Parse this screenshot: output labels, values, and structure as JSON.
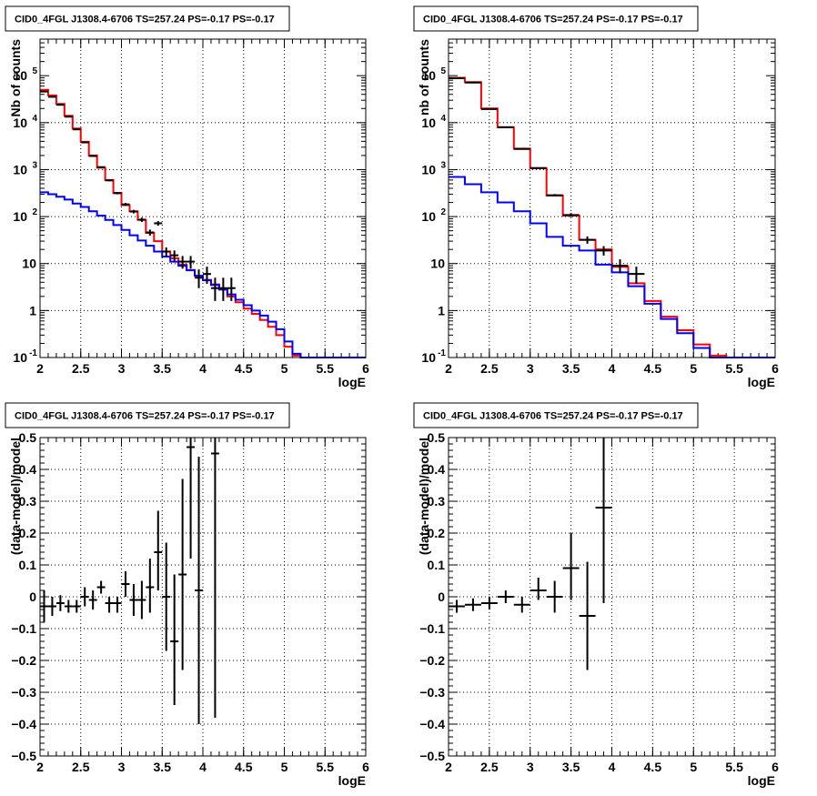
{
  "panel_title": "CID0_4FGL J1308.4-6706 TS=257.24 PS=-0.17 PS=-0.17",
  "colors": {
    "total_model": "#ff0000",
    "component": "#0000ff",
    "data": "#000000",
    "grid": "#000000"
  },
  "chart_data": [
    {
      "type": "line",
      "title": "CID0_4FGL J1308.4-6706 TS=257.24 PS=-0.17 PS=-0.17",
      "xlabel": "logE",
      "ylabel": "Nb of counts",
      "xlim": [
        2,
        6
      ],
      "ylim": [
        0.1,
        600000
      ],
      "log_y": true,
      "grid": true,
      "x_ticks": [
        "2",
        "2.5",
        "3",
        "3.5",
        "4",
        "4.5",
        "5",
        "5.5",
        "6"
      ],
      "y_ticks": [
        {
          "value": 0.1,
          "label": "10",
          "sup": "-1"
        },
        {
          "value": 1,
          "label": "1",
          "sup": ""
        },
        {
          "value": 10,
          "label": "10",
          "sup": ""
        },
        {
          "value": 100,
          "label": "10",
          "sup": "2"
        },
        {
          "value": 1000,
          "label": "10",
          "sup": "3"
        },
        {
          "value": 10000,
          "label": "10",
          "sup": "4"
        },
        {
          "value": 100000,
          "label": "10",
          "sup": "5"
        }
      ],
      "bin_edges": [
        2,
        2.1,
        2.2,
        2.3,
        2.4,
        2.5,
        2.6,
        2.7,
        2.8,
        2.9,
        3,
        3.1,
        3.2,
        3.3,
        3.4,
        3.5,
        3.6,
        3.7,
        3.8,
        3.9,
        4,
        4.1,
        4.2,
        4.3,
        4.4,
        4.5,
        4.6,
        4.7,
        4.8,
        4.9,
        5,
        5.1,
        5.2,
        5.3,
        5.4,
        5.5,
        5.6,
        5.7,
        5.8,
        5.9,
        6
      ],
      "series": [
        {
          "kind": "histogram",
          "color": "#ff0000",
          "values": [
            50000,
            38000,
            25000,
            14000,
            7500,
            3900,
            2000,
            1100,
            600,
            320,
            175,
            130,
            85,
            45,
            30,
            18,
            13,
            9.5,
            7.3,
            5.5,
            4.5,
            3.6,
            2.8,
            2.0,
            1.5,
            1.1,
            0.85,
            0.63,
            0.45,
            0.3,
            0.17,
            0.11,
            0.1,
            0.1,
            0.1,
            0.1,
            0.1,
            0.1,
            0.1,
            0.1
          ]
        },
        {
          "kind": "histogram",
          "color": "#0000ff",
          "values": [
            330,
            300,
            265,
            230,
            190,
            160,
            130,
            105,
            85,
            66,
            52,
            40,
            31,
            24,
            18,
            14,
            11,
            9,
            7.2,
            5.5,
            4.4,
            3.5,
            2.8,
            2.2,
            1.7,
            1.3,
            1.0,
            0.78,
            0.58,
            0.4,
            0.22,
            0.12,
            0.1,
            0.1,
            0.1,
            0.1,
            0.1,
            0.1,
            0.1,
            0.1
          ]
        },
        {
          "kind": "errorbar",
          "color": "#000000",
          "points": [
            {
              "x": 2.05,
              "y": 46000,
              "ylo": 45600,
              "yhi": 46400
            },
            {
              "x": 2.15,
              "y": 35500,
              "ylo": 35200,
              "yhi": 35800
            },
            {
              "x": 2.25,
              "y": 24000,
              "ylo": 23700,
              "yhi": 24300
            },
            {
              "x": 2.35,
              "y": 13400,
              "ylo": 13200,
              "yhi": 13600
            },
            {
              "x": 2.45,
              "y": 7200,
              "ylo": 7050,
              "yhi": 7350
            },
            {
              "x": 2.55,
              "y": 3800,
              "ylo": 3700,
              "yhi": 3900
            },
            {
              "x": 2.65,
              "y": 1950,
              "ylo": 1900,
              "yhi": 2000
            },
            {
              "x": 2.75,
              "y": 1130,
              "ylo": 1100,
              "yhi": 1165
            },
            {
              "x": 2.85,
              "y": 590,
              "ylo": 566,
              "yhi": 614
            },
            {
              "x": 2.95,
              "y": 315,
              "ylo": 298,
              "yhi": 333
            },
            {
              "x": 3.05,
              "y": 182,
              "ylo": 169,
              "yhi": 196
            },
            {
              "x": 3.15,
              "y": 128,
              "ylo": 117,
              "yhi": 139
            },
            {
              "x": 3.25,
              "y": 86,
              "ylo": 77,
              "yhi": 95
            },
            {
              "x": 3.35,
              "y": 46,
              "ylo": 39.5,
              "yhi": 53
            },
            {
              "x": 3.45,
              "y": 72,
              "ylo": 64,
              "yhi": 80
            },
            {
              "x": 3.55,
              "y": 18,
              "ylo": 14,
              "yhi": 22
            },
            {
              "x": 3.65,
              "y": 15,
              "ylo": 11.4,
              "yhi": 19
            },
            {
              "x": 3.75,
              "y": 11,
              "ylo": 7.8,
              "yhi": 14.5
            },
            {
              "x": 3.85,
              "y": 11,
              "ylo": 7.8,
              "yhi": 14.5
            },
            {
              "x": 3.95,
              "y": 5,
              "ylo": 3,
              "yhi": 7.5
            },
            {
              "x": 4.05,
              "y": 6,
              "ylo": 3.7,
              "yhi": 8.6
            },
            {
              "x": 4.15,
              "y": 3,
              "ylo": 1.6,
              "yhi": 5.0
            },
            {
              "x": 4.25,
              "y": 3,
              "ylo": 1.6,
              "yhi": 5.0
            },
            {
              "x": 4.35,
              "y": 3,
              "ylo": 1.6,
              "yhi": 5.0
            }
          ]
        }
      ]
    },
    {
      "type": "line",
      "title": "CID0_4FGL J1308.4-6706 TS=257.24 PS=-0.17 PS=-0.17",
      "xlabel": "logE",
      "ylabel": "nb of counts",
      "xlim": [
        2,
        6
      ],
      "ylim": [
        0.1,
        600000
      ],
      "log_y": true,
      "grid": true,
      "x_ticks": [
        "2",
        "2.5",
        "3",
        "3.5",
        "4",
        "4.5",
        "5",
        "5.5",
        "6"
      ],
      "y_ticks": [
        {
          "value": 0.1,
          "label": "10",
          "sup": "-1"
        },
        {
          "value": 1,
          "label": "1",
          "sup": ""
        },
        {
          "value": 10,
          "label": "10",
          "sup": ""
        },
        {
          "value": 100,
          "label": "10",
          "sup": "2"
        },
        {
          "value": 1000,
          "label": "10",
          "sup": "3"
        },
        {
          "value": 10000,
          "label": "10",
          "sup": "4"
        },
        {
          "value": 100000,
          "label": "10",
          "sup": "5"
        }
      ],
      "bin_edges": [
        2,
        2.2,
        2.4,
        2.6,
        2.8,
        3.0,
        3.2,
        3.4,
        3.6,
        3.8,
        4.0,
        4.2,
        4.4,
        4.6,
        4.8,
        5.0,
        5.2,
        5.4,
        5.6,
        5.8,
        6.0
      ],
      "series": [
        {
          "kind": "histogram",
          "color": "#ff0000",
          "values": [
            90000,
            73000,
            20000,
            8000,
            2800,
            1070,
            280,
            105,
            32,
            20,
            8.5,
            3.8,
            1.6,
            0.74,
            0.38,
            0.19,
            0.11,
            0.1,
            0.1,
            0.1
          ]
        },
        {
          "kind": "histogram",
          "color": "#0000ff",
          "values": [
            700,
            490,
            330,
            200,
            130,
            72,
            37,
            24,
            19,
            9.5,
            6.5,
            3.3,
            1.4,
            0.66,
            0.33,
            0.16,
            0.1,
            0.1,
            0.1,
            0.1
          ]
        },
        {
          "kind": "errorbar",
          "color": "#000000",
          "points": [
            {
              "x": 2.1,
              "y": 88000,
              "ylo": 87700,
              "yhi": 88300
            },
            {
              "x": 2.3,
              "y": 71500,
              "ylo": 71200,
              "yhi": 71800
            },
            {
              "x": 2.5,
              "y": 19500,
              "ylo": 19350,
              "yhi": 19650
            },
            {
              "x": 2.7,
              "y": 8000,
              "ylo": 7900,
              "yhi": 8100
            },
            {
              "x": 2.9,
              "y": 2750,
              "ylo": 2700,
              "yhi": 2800
            },
            {
              "x": 3.1,
              "y": 1080,
              "ylo": 1050,
              "yhi": 1110
            },
            {
              "x": 3.3,
              "y": 285,
              "ylo": 268,
              "yhi": 302
            },
            {
              "x": 3.5,
              "y": 108,
              "ylo": 98,
              "yhi": 119
            },
            {
              "x": 3.7,
              "y": 32,
              "ylo": 26.5,
              "yhi": 38
            },
            {
              "x": 3.9,
              "y": 19,
              "ylo": 14.8,
              "yhi": 23.5
            },
            {
              "x": 4.1,
              "y": 9,
              "ylo": 6.2,
              "yhi": 12.3
            },
            {
              "x": 4.3,
              "y": 6,
              "ylo": 3.7,
              "yhi": 8.6
            }
          ]
        }
      ]
    },
    {
      "type": "scatter",
      "title": "CID0_4FGL J1308.4-6706 TS=257.24 PS=-0.17 PS=-0.17",
      "xlabel": "logE",
      "ylabel": "(data-model)/model",
      "xlim": [
        2,
        6
      ],
      "ylim": [
        -0.5,
        0.5
      ],
      "log_y": false,
      "grid": true,
      "x_ticks": [
        "2",
        "2.5",
        "3",
        "3.5",
        "4",
        "4.5",
        "5",
        "5.5",
        "6"
      ],
      "y_ticks": [
        {
          "value": -0.5,
          "label": "−0.5",
          "sup": ""
        },
        {
          "value": -0.4,
          "label": "−0.4",
          "sup": ""
        },
        {
          "value": -0.3,
          "label": "−0.3",
          "sup": ""
        },
        {
          "value": -0.2,
          "label": "−0.2",
          "sup": ""
        },
        {
          "value": -0.1,
          "label": "−0.1",
          "sup": ""
        },
        {
          "value": 0,
          "label": "0",
          "sup": ""
        },
        {
          "value": 0.1,
          "label": "0.1",
          "sup": ""
        },
        {
          "value": 0.2,
          "label": "0.2",
          "sup": ""
        },
        {
          "value": 0.3,
          "label": "0.3",
          "sup": ""
        },
        {
          "value": 0.4,
          "label": "0.4",
          "sup": ""
        },
        {
          "value": 0.5,
          "label": "0.5",
          "sup": ""
        }
      ],
      "xerr": 0.05,
      "series": [
        {
          "kind": "errorbar",
          "color": "#000000",
          "points": [
            {
              "x": 2.05,
              "y": -0.03,
              "ylo": -0.08,
              "yhi": 0.02
            },
            {
              "x": 2.15,
              "y": -0.03,
              "ylo": -0.06,
              "yhi": 0.0
            },
            {
              "x": 2.25,
              "y": -0.02,
              "ylo": -0.045,
              "yhi": 0.005
            },
            {
              "x": 2.35,
              "y": -0.03,
              "ylo": -0.05,
              "yhi": -0.01
            },
            {
              "x": 2.45,
              "y": -0.03,
              "ylo": -0.05,
              "yhi": -0.01
            },
            {
              "x": 2.55,
              "y": 0.0,
              "ylo": -0.03,
              "yhi": 0.03
            },
            {
              "x": 2.65,
              "y": -0.01,
              "ylo": -0.04,
              "yhi": 0.02
            },
            {
              "x": 2.75,
              "y": 0.03,
              "ylo": 0.01,
              "yhi": 0.05
            },
            {
              "x": 2.85,
              "y": -0.02,
              "ylo": -0.05,
              "yhi": 0.0
            },
            {
              "x": 2.95,
              "y": -0.02,
              "ylo": -0.05,
              "yhi": 0.0
            },
            {
              "x": 3.05,
              "y": 0.04,
              "ylo": 0.0,
              "yhi": 0.08
            },
            {
              "x": 3.15,
              "y": -0.01,
              "ylo": -0.06,
              "yhi": 0.04
            },
            {
              "x": 3.25,
              "y": -0.01,
              "ylo": -0.07,
              "yhi": 0.05
            },
            {
              "x": 3.35,
              "y": 0.03,
              "ylo": -0.05,
              "yhi": 0.12
            },
            {
              "x": 3.45,
              "y": 0.14,
              "ylo": 0.02,
              "yhi": 0.27
            },
            {
              "x": 3.55,
              "y": 0.0,
              "ylo": -0.17,
              "yhi": 0.17
            },
            {
              "x": 3.65,
              "y": -0.14,
              "ylo": -0.34,
              "yhi": 0.07
            },
            {
              "x": 3.75,
              "y": 0.07,
              "ylo": -0.23,
              "yhi": 0.37
            },
            {
              "x": 3.85,
              "y": 0.47,
              "ylo": 0.12,
              "yhi": 0.5
            },
            {
              "x": 3.95,
              "y": 0.02,
              "ylo": -0.4,
              "yhi": 0.44
            },
            {
              "x": 4.15,
              "y": 0.45,
              "ylo": -0.38,
              "yhi": 0.5
            }
          ]
        }
      ]
    },
    {
      "type": "scatter",
      "title": "CID0_4FGL J1308.4-6706 TS=257.24 PS=-0.17 PS=-0.17",
      "xlabel": "logE",
      "ylabel": "(data-model)/model",
      "xlim": [
        2,
        6
      ],
      "ylim": [
        -0.5,
        0.5
      ],
      "log_y": false,
      "grid": true,
      "x_ticks": [
        "2",
        "2.5",
        "3",
        "3.5",
        "4",
        "4.5",
        "5",
        "5.5",
        "6"
      ],
      "y_ticks": [
        {
          "value": -0.5,
          "label": "−0.5",
          "sup": ""
        },
        {
          "value": -0.4,
          "label": "−0.4",
          "sup": ""
        },
        {
          "value": -0.3,
          "label": "−0.3",
          "sup": ""
        },
        {
          "value": -0.2,
          "label": "−0.2",
          "sup": ""
        },
        {
          "value": -0.1,
          "label": "−0.1",
          "sup": ""
        },
        {
          "value": 0,
          "label": "0",
          "sup": ""
        },
        {
          "value": 0.1,
          "label": "0.1",
          "sup": ""
        },
        {
          "value": 0.2,
          "label": "0.2",
          "sup": ""
        },
        {
          "value": 0.3,
          "label": "0.3",
          "sup": ""
        },
        {
          "value": 0.4,
          "label": "0.4",
          "sup": ""
        },
        {
          "value": 0.5,
          "label": "0.5",
          "sup": ""
        }
      ],
      "xerr": 0.1,
      "series": [
        {
          "kind": "errorbar",
          "color": "#000000",
          "points": [
            {
              "x": 2.1,
              "y": -0.03,
              "ylo": -0.05,
              "yhi": -0.01
            },
            {
              "x": 2.3,
              "y": -0.025,
              "ylo": -0.045,
              "yhi": -0.005
            },
            {
              "x": 2.5,
              "y": -0.02,
              "ylo": -0.04,
              "yhi": 0.0
            },
            {
              "x": 2.7,
              "y": 0.0,
              "ylo": -0.02,
              "yhi": 0.02
            },
            {
              "x": 2.9,
              "y": -0.025,
              "ylo": -0.05,
              "yhi": 0.0
            },
            {
              "x": 3.1,
              "y": 0.02,
              "ylo": -0.01,
              "yhi": 0.06
            },
            {
              "x": 3.3,
              "y": 0.0,
              "ylo": -0.05,
              "yhi": 0.05
            },
            {
              "x": 3.5,
              "y": 0.09,
              "ylo": -0.01,
              "yhi": 0.2
            },
            {
              "x": 3.7,
              "y": -0.06,
              "ylo": -0.23,
              "yhi": 0.11
            },
            {
              "x": 3.9,
              "y": 0.28,
              "ylo": -0.02,
              "yhi": 0.5
            }
          ]
        }
      ]
    }
  ]
}
